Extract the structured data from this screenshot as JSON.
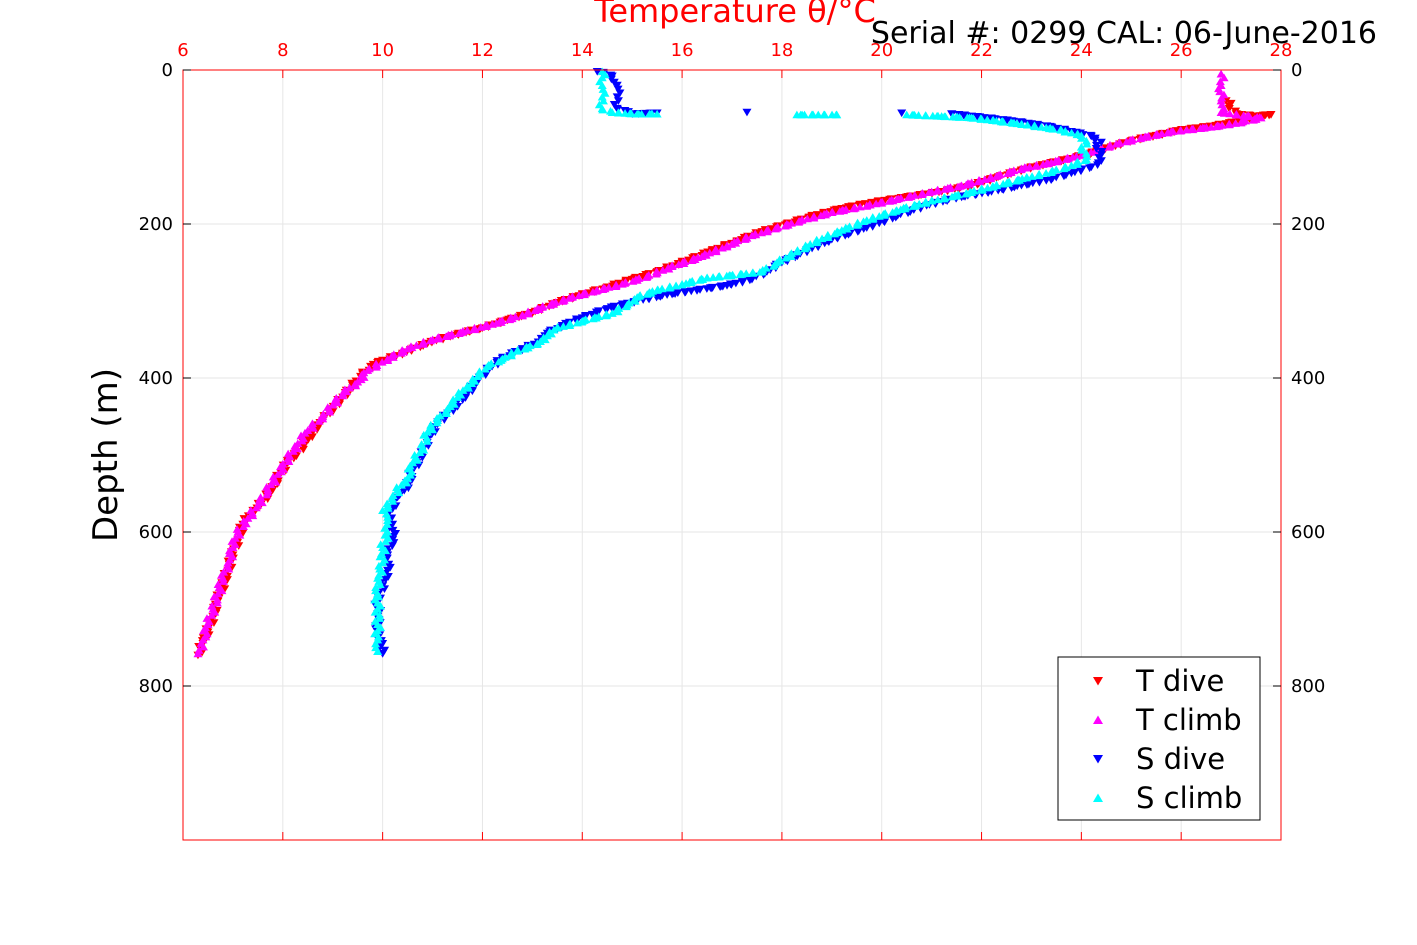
{
  "chart_data": {
    "type": "scatter",
    "title": "Temperature θ/°C",
    "subtitle": "Serial #: 0299 CAL: 06-June-2016",
    "xlabel": "Temperature θ/°C",
    "ylabel": "Depth (m)",
    "xlim": [
      6,
      28
    ],
    "ylim": [
      0,
      1000
    ],
    "y_reversed": true,
    "x_ticks": [
      "6",
      "8",
      "10",
      "12",
      "14",
      "16",
      "18",
      "20",
      "22",
      "24",
      "26",
      "28"
    ],
    "y_ticks": [
      "0",
      "200",
      "400",
      "600",
      "800"
    ],
    "grid": true,
    "legend_position": "bottom-right",
    "colors": {
      "axis": "#ff0000",
      "grid": "#e6e6e6"
    },
    "series": [
      {
        "name": "T dive",
        "marker": "triangle-down",
        "color": "#ff0000",
        "points": [
          [
            26.9,
            40
          ],
          [
            27.1,
            57
          ],
          [
            27.5,
            60
          ],
          [
            27.8,
            58
          ],
          [
            27.3,
            65
          ],
          [
            26.7,
            72
          ],
          [
            26.0,
            78
          ],
          [
            25.5,
            85
          ],
          [
            25.0,
            92
          ],
          [
            24.6,
            100
          ],
          [
            24.2,
            108
          ],
          [
            23.8,
            115
          ],
          [
            23.3,
            122
          ],
          [
            22.8,
            130
          ],
          [
            22.3,
            140
          ],
          [
            21.8,
            150
          ],
          [
            21.2,
            158
          ],
          [
            20.5,
            165
          ],
          [
            19.8,
            172
          ],
          [
            19.2,
            180
          ],
          [
            18.6,
            190
          ],
          [
            18.1,
            200
          ],
          [
            17.6,
            210
          ],
          [
            17.1,
            222
          ],
          [
            16.6,
            235
          ],
          [
            16.0,
            250
          ],
          [
            15.5,
            262
          ],
          [
            15.0,
            272
          ],
          [
            14.5,
            282
          ],
          [
            14.0,
            292
          ],
          [
            13.5,
            302
          ],
          [
            13.0,
            315
          ],
          [
            12.5,
            325
          ],
          [
            12.0,
            335
          ],
          [
            11.4,
            345
          ],
          [
            10.9,
            355
          ],
          [
            10.4,
            368
          ],
          [
            9.9,
            380
          ],
          [
            9.6,
            395
          ],
          [
            9.4,
            410
          ],
          [
            9.2,
            425
          ],
          [
            9.0,
            440
          ],
          [
            8.8,
            455
          ],
          [
            8.6,
            470
          ],
          [
            8.4,
            490
          ],
          [
            8.1,
            510
          ],
          [
            7.9,
            530
          ],
          [
            7.8,
            545
          ],
          [
            7.6,
            560
          ],
          [
            7.4,
            572
          ],
          [
            7.2,
            590
          ],
          [
            7.1,
            610
          ],
          [
            7.0,
            630
          ],
          [
            6.9,
            650
          ],
          [
            6.8,
            670
          ],
          [
            6.7,
            690
          ],
          [
            6.6,
            710
          ],
          [
            6.5,
            730
          ],
          [
            6.4,
            745
          ],
          [
            6.3,
            760
          ]
        ]
      },
      {
        "name": "T climb",
        "marker": "triangle-up",
        "color": "#ff00ff",
        "points": [
          [
            26.8,
            5
          ],
          [
            26.8,
            20
          ],
          [
            26.8,
            40
          ],
          [
            26.8,
            55
          ],
          [
            27.6,
            62
          ],
          [
            27.2,
            68
          ],
          [
            26.6,
            74
          ],
          [
            25.8,
            80
          ],
          [
            25.2,
            88
          ],
          [
            24.7,
            96
          ],
          [
            24.3,
            104
          ],
          [
            23.9,
            112
          ],
          [
            23.4,
            120
          ],
          [
            22.8,
            128
          ],
          [
            22.3,
            138
          ],
          [
            21.6,
            150
          ],
          [
            21.0,
            158
          ],
          [
            20.3,
            168
          ],
          [
            19.7,
            176
          ],
          [
            19.0,
            185
          ],
          [
            18.4,
            195
          ],
          [
            17.9,
            205
          ],
          [
            17.4,
            215
          ],
          [
            16.9,
            228
          ],
          [
            16.4,
            242
          ],
          [
            15.8,
            255
          ],
          [
            15.3,
            268
          ],
          [
            14.8,
            278
          ],
          [
            14.3,
            286
          ],
          [
            13.8,
            295
          ],
          [
            13.2,
            308
          ],
          [
            12.8,
            318
          ],
          [
            12.2,
            330
          ],
          [
            11.6,
            340
          ],
          [
            11.0,
            350
          ],
          [
            10.5,
            362
          ],
          [
            10.1,
            375
          ],
          [
            9.7,
            390
          ],
          [
            9.5,
            405
          ],
          [
            9.2,
            420
          ],
          [
            9.0,
            435
          ],
          [
            8.8,
            450
          ],
          [
            8.5,
            468
          ],
          [
            8.3,
            485
          ],
          [
            8.1,
            505
          ],
          [
            7.9,
            525
          ],
          [
            7.7,
            545
          ],
          [
            7.5,
            565
          ],
          [
            7.3,
            582
          ],
          [
            7.1,
            600
          ],
          [
            7.0,
            620
          ],
          [
            6.9,
            640
          ],
          [
            6.8,
            660
          ],
          [
            6.7,
            680
          ],
          [
            6.6,
            700
          ],
          [
            6.5,
            720
          ],
          [
            6.4,
            740
          ],
          [
            6.3,
            758
          ]
        ]
      },
      {
        "name": "S dive",
        "marker": "triangle-down",
        "color": "#0000ff",
        "points": [
          [
            14.3,
            2
          ],
          [
            14.6,
            8
          ],
          [
            14.7,
            20
          ],
          [
            14.7,
            35
          ],
          [
            14.7,
            50
          ],
          [
            15.0,
            57
          ],
          [
            15.5,
            56
          ],
          [
            17.3,
            55
          ],
          [
            20.4,
            56
          ],
          [
            21.4,
            57
          ],
          [
            21.8,
            60
          ],
          [
            22.2,
            63
          ],
          [
            22.6,
            66
          ],
          [
            23.0,
            70
          ],
          [
            23.4,
            74
          ],
          [
            23.8,
            80
          ],
          [
            24.2,
            86
          ],
          [
            24.4,
            94
          ],
          [
            24.3,
            102
          ],
          [
            24.4,
            110
          ],
          [
            24.4,
            118
          ],
          [
            24.2,
            126
          ],
          [
            23.8,
            134
          ],
          [
            23.4,
            142
          ],
          [
            22.8,
            150
          ],
          [
            22.2,
            158
          ],
          [
            21.5,
            166
          ],
          [
            20.9,
            176
          ],
          [
            20.3,
            190
          ],
          [
            19.7,
            205
          ],
          [
            19.0,
            220
          ],
          [
            18.5,
            235
          ],
          [
            18.0,
            250
          ],
          [
            17.7,
            262
          ],
          [
            17.4,
            272
          ],
          [
            16.9,
            280
          ],
          [
            16.3,
            286
          ],
          [
            15.7,
            292
          ],
          [
            15.1,
            300
          ],
          [
            14.5,
            310
          ],
          [
            14.0,
            322
          ],
          [
            13.6,
            332
          ],
          [
            13.3,
            342
          ],
          [
            13.2,
            352
          ],
          [
            12.8,
            362
          ],
          [
            12.4,
            375
          ],
          [
            12.1,
            390
          ],
          [
            11.9,
            405
          ],
          [
            11.7,
            420
          ],
          [
            11.4,
            440
          ],
          [
            11.1,
            460
          ],
          [
            10.9,
            480
          ],
          [
            10.8,
            500
          ],
          [
            10.6,
            520
          ],
          [
            10.5,
            540
          ],
          [
            10.3,
            555
          ],
          [
            10.2,
            570
          ],
          [
            10.1,
            578
          ],
          [
            10.2,
            590
          ],
          [
            10.2,
            610
          ],
          [
            10.1,
            630
          ],
          [
            10.1,
            650
          ],
          [
            10.0,
            670
          ],
          [
            9.9,
            690
          ],
          [
            9.9,
            710
          ],
          [
            9.9,
            730
          ],
          [
            10.0,
            745
          ],
          [
            10.0,
            758
          ]
        ]
      },
      {
        "name": "S climb",
        "marker": "triangle-up",
        "color": "#00ffff",
        "points": [
          [
            14.4,
            2
          ],
          [
            14.4,
            10
          ],
          [
            14.4,
            20
          ],
          [
            14.4,
            35
          ],
          [
            14.4,
            50
          ],
          [
            14.6,
            55
          ],
          [
            15.1,
            57
          ],
          [
            15.5,
            57
          ],
          [
            18.3,
            58
          ],
          [
            19.1,
            58
          ],
          [
            20.5,
            58
          ],
          [
            21.2,
            60
          ],
          [
            21.8,
            62
          ],
          [
            22.3,
            66
          ],
          [
            22.8,
            70
          ],
          [
            23.2,
            74
          ],
          [
            23.6,
            78
          ],
          [
            24.0,
            85
          ],
          [
            24.1,
            92
          ],
          [
            24.0,
            100
          ],
          [
            24.1,
            108
          ],
          [
            24.1,
            116
          ],
          [
            23.8,
            124
          ],
          [
            23.4,
            132
          ],
          [
            22.9,
            140
          ],
          [
            22.3,
            150
          ],
          [
            21.7,
            160
          ],
          [
            21.0,
            170
          ],
          [
            20.3,
            182
          ],
          [
            19.7,
            195
          ],
          [
            19.2,
            208
          ],
          [
            18.7,
            222
          ],
          [
            18.3,
            236
          ],
          [
            17.9,
            250
          ],
          [
            17.6,
            262
          ],
          [
            16.5,
            270
          ],
          [
            16.0,
            278
          ],
          [
            15.5,
            286
          ],
          [
            15.1,
            295
          ],
          [
            14.9,
            305
          ],
          [
            14.6,
            316
          ],
          [
            14.0,
            326
          ],
          [
            13.5,
            335
          ],
          [
            13.3,
            345
          ],
          [
            13.1,
            355
          ],
          [
            12.7,
            365
          ],
          [
            12.4,
            375
          ],
          [
            12.1,
            385
          ],
          [
            11.9,
            398
          ],
          [
            11.7,
            410
          ],
          [
            11.5,
            425
          ],
          [
            11.3,
            440
          ],
          [
            11.1,
            455
          ],
          [
            10.9,
            470
          ],
          [
            10.8,
            490
          ],
          [
            10.6,
            510
          ],
          [
            10.5,
            530
          ],
          [
            10.3,
            545
          ],
          [
            10.2,
            560
          ],
          [
            10.0,
            572
          ],
          [
            10.1,
            585
          ],
          [
            10.1,
            600
          ],
          [
            10.0,
            620
          ],
          [
            10.0,
            640
          ],
          [
            9.9,
            660
          ],
          [
            9.9,
            680
          ],
          [
            9.9,
            700
          ],
          [
            9.9,
            720
          ],
          [
            9.9,
            740
          ],
          [
            9.9,
            755
          ]
        ]
      }
    ]
  }
}
